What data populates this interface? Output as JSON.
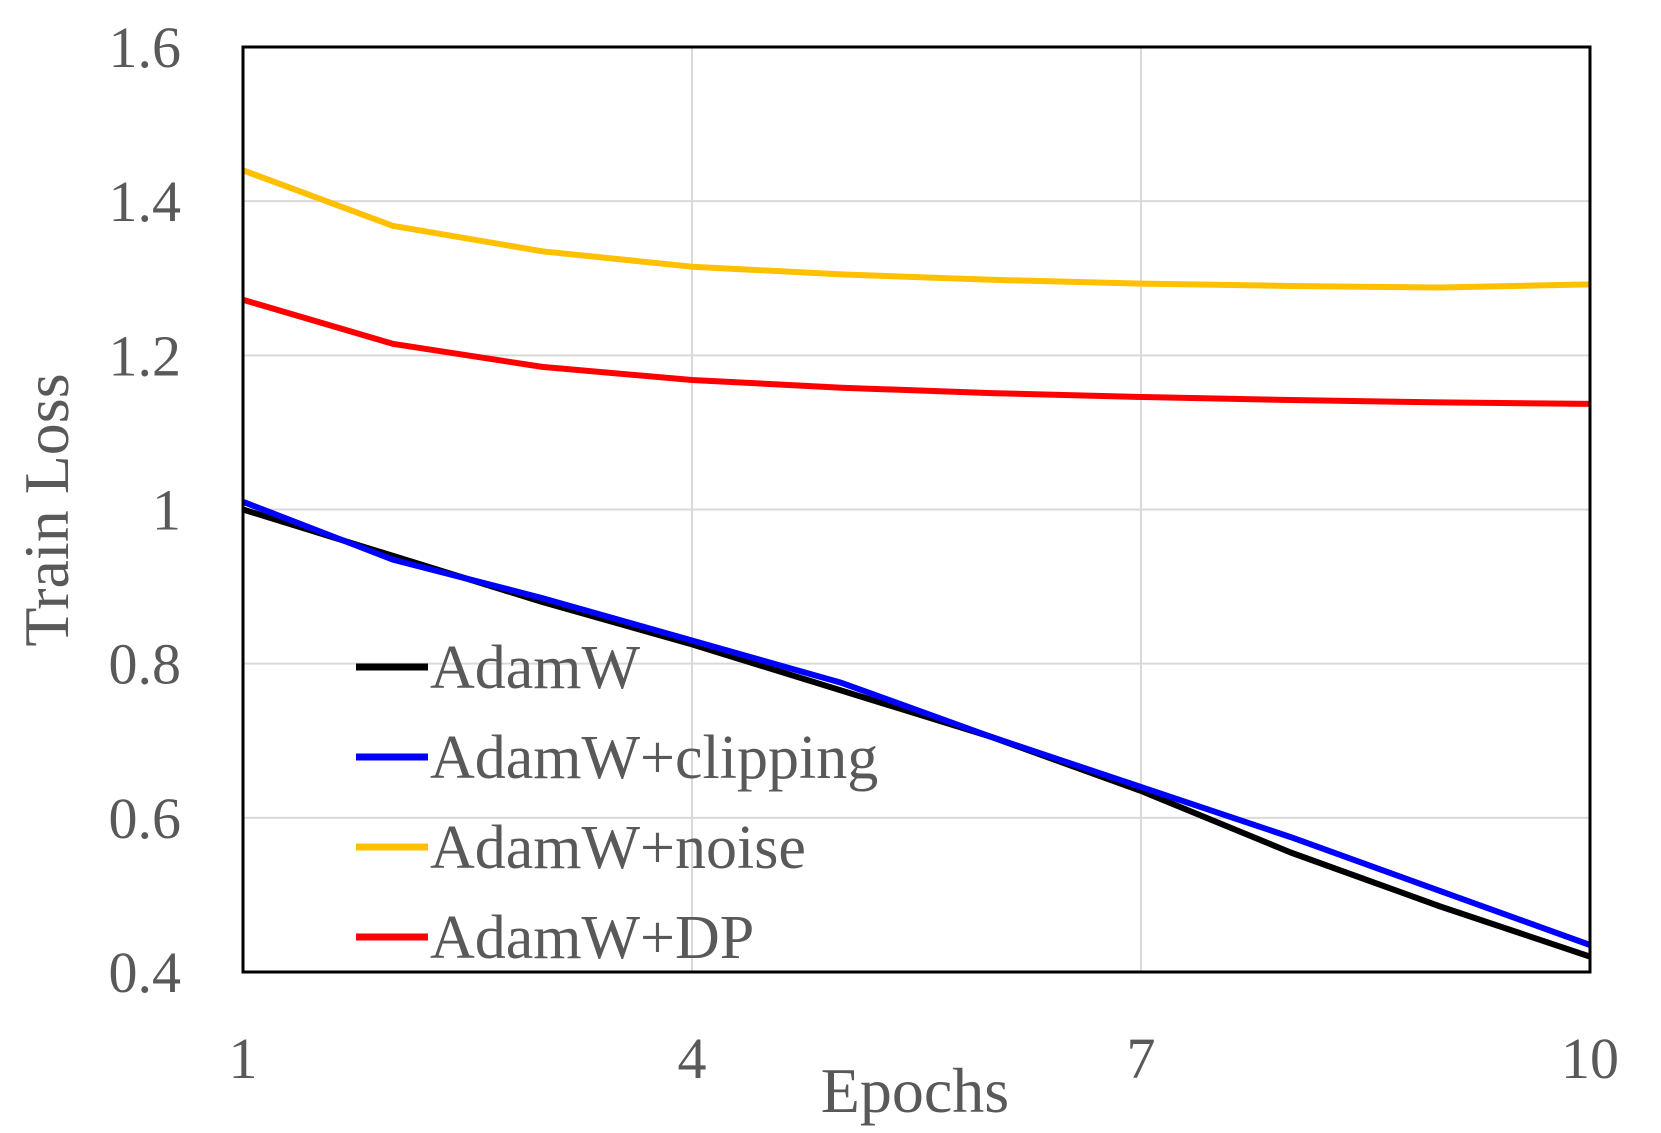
{
  "chart_data": {
    "type": "line",
    "title": "",
    "xlabel": "Epochs",
    "ylabel": "Train Loss",
    "xlim": [
      1,
      10
    ],
    "ylim": [
      0.4,
      1.6
    ],
    "x_ticks": [
      1,
      4,
      7,
      10
    ],
    "x_tick_labels": [
      "1",
      "4",
      "7",
      "10"
    ],
    "y_ticks": [
      0.4,
      0.6,
      0.8,
      1.0,
      1.2,
      1.4,
      1.6
    ],
    "y_tick_labels": [
      "0.4",
      "0.6",
      "0.8",
      "1",
      "1.2",
      "1.4",
      "1.6"
    ],
    "grid": true,
    "legend_position": "lower-left",
    "x": [
      1,
      2,
      3,
      4,
      5,
      6,
      7,
      8,
      9,
      10
    ],
    "series": [
      {
        "name": "AdamW",
        "color": "#000000",
        "values": [
          1.0,
          0.94,
          0.88,
          0.825,
          0.765,
          0.705,
          0.635,
          0.555,
          0.485,
          0.42
        ]
      },
      {
        "name": "AdamW+clipping",
        "color": "#0000ff",
        "values": [
          1.01,
          0.935,
          0.885,
          0.83,
          0.775,
          0.705,
          0.64,
          0.575,
          0.505,
          0.435
        ]
      },
      {
        "name": "AdamW+noise",
        "color": "#ffc000",
        "values": [
          1.44,
          1.368,
          1.335,
          1.315,
          1.305,
          1.298,
          1.293,
          1.29,
          1.288,
          1.292
        ]
      },
      {
        "name": "AdamW+DP",
        "color": "#ff0000",
        "values": [
          1.272,
          1.215,
          1.185,
          1.168,
          1.158,
          1.151,
          1.146,
          1.142,
          1.139,
          1.137
        ]
      }
    ]
  }
}
